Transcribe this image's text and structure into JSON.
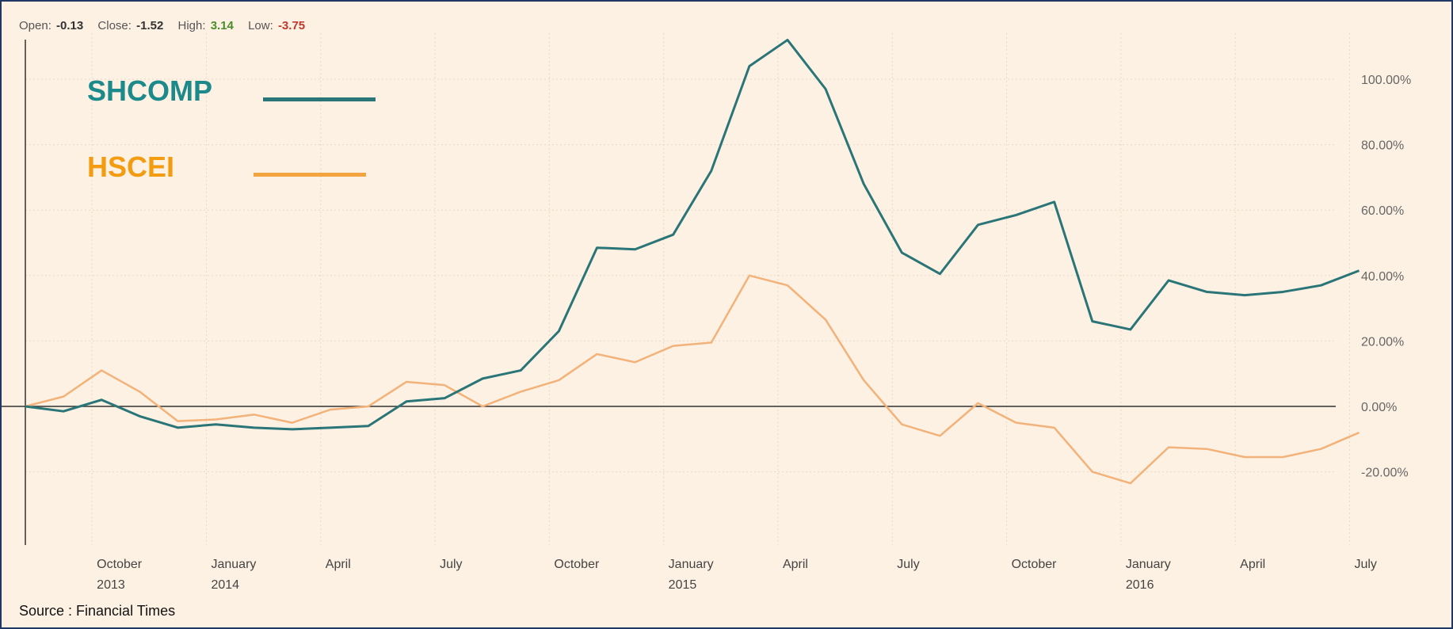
{
  "header": {
    "open_label": "Open:",
    "open_value": "-0.13",
    "close_label": "Close:",
    "close_value": "-1.52",
    "high_label": "High:",
    "high_value": "3.14",
    "low_label": "Low:",
    "low_value": "-3.75"
  },
  "footer": {
    "source": "Source : Financial Times"
  },
  "colors": {
    "shcomp": "#2a7577",
    "hscei": "#f2b279",
    "background": "#fdf1e3",
    "border": "#1f3864"
  },
  "chart_data": {
    "type": "line",
    "title": "",
    "xlabel": "",
    "ylabel": "",
    "ylim": [
      -40,
      112
    ],
    "yticks": [
      -20,
      0,
      20,
      40,
      60,
      80,
      100
    ],
    "ytick_labels": [
      "-20.00%",
      "0.00%",
      "20.00%",
      "40.00%",
      "60.00%",
      "80.00%",
      "100.00%"
    ],
    "x_unit": "month",
    "x_dates": [
      "2013-08",
      "2013-09",
      "2013-10",
      "2013-11",
      "2013-12",
      "2014-01",
      "2014-02",
      "2014-03",
      "2014-04",
      "2014-05",
      "2014-06",
      "2014-07",
      "2014-08",
      "2014-09",
      "2014-10",
      "2014-11",
      "2014-12",
      "2015-01",
      "2015-02",
      "2015-03",
      "2015-04",
      "2015-05",
      "2015-06",
      "2015-07",
      "2015-08",
      "2015-09",
      "2015-10",
      "2015-11",
      "2015-12",
      "2016-01",
      "2016-02",
      "2016-03",
      "2016-04",
      "2016-05",
      "2016-06",
      "2016-07"
    ],
    "xticks": [
      {
        "date": "2013-09",
        "label": "October",
        "year": "2013"
      },
      {
        "date": "2013-12",
        "label": "January",
        "year": "2014"
      },
      {
        "date": "2014-03",
        "label": "April",
        "year": ""
      },
      {
        "date": "2014-06",
        "label": "July",
        "year": ""
      },
      {
        "date": "2014-09",
        "label": "October",
        "year": ""
      },
      {
        "date": "2014-12",
        "label": "January",
        "year": "2015"
      },
      {
        "date": "2015-03",
        "label": "April",
        "year": ""
      },
      {
        "date": "2015-06",
        "label": "July",
        "year": ""
      },
      {
        "date": "2015-09",
        "label": "October",
        "year": ""
      },
      {
        "date": "2015-12",
        "label": "January",
        "year": "2016"
      },
      {
        "date": "2016-03",
        "label": "April",
        "year": ""
      },
      {
        "date": "2016-06",
        "label": "July",
        "year": ""
      }
    ],
    "series": [
      {
        "name": "SHCOMP",
        "color": "#2a7577",
        "values": [
          0,
          -1.5,
          2,
          -3,
          -6.5,
          -5.5,
          -6.5,
          -7,
          -6.5,
          -6,
          1.5,
          2.5,
          8.5,
          11,
          23,
          48.5,
          48,
          52.5,
          72,
          104,
          112,
          97,
          68,
          47,
          40.5,
          55.5,
          58.5,
          62.5,
          26,
          23.5,
          38.5,
          35,
          34,
          35,
          37,
          41.5
        ]
      },
      {
        "name": "HSCEI",
        "color": "#f2b279",
        "values": [
          0,
          3,
          11,
          4.5,
          -4.5,
          -4,
          -2.5,
          -5,
          -1,
          0,
          7.5,
          6.5,
          0,
          4.5,
          8,
          16,
          13.5,
          18.5,
          19.5,
          40,
          37,
          26.5,
          8,
          -5.5,
          -9,
          1,
          -5,
          -6.5,
          -20,
          -23.5,
          -12.5,
          -13,
          -15.5,
          -15.5,
          -13,
          -8
        ]
      }
    ],
    "grid": true,
    "legend": "top-left"
  }
}
